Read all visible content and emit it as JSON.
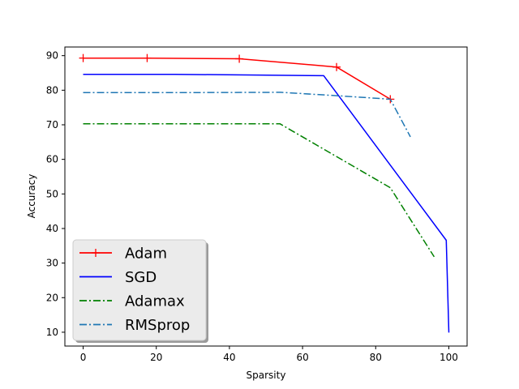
{
  "chart_data": {
    "type": "line",
    "title": "",
    "xlabel": "Sparsity",
    "ylabel": "Accuracy",
    "xlim": [
      -5,
      105
    ],
    "ylim": [
      6,
      92.5
    ],
    "xticks": [
      0,
      20,
      40,
      60,
      80,
      100
    ],
    "yticks": [
      10,
      20,
      30,
      40,
      50,
      60,
      70,
      80,
      90
    ],
    "grid": false,
    "legend_position": "lower-left",
    "series": [
      {
        "name": "Adam",
        "color": "#ff0000",
        "linestyle": "solid",
        "marker": "plus",
        "x": [
          0,
          17.5,
          42.7,
          69.3,
          84.0
        ],
        "y": [
          89.3,
          89.3,
          89.1,
          86.7,
          77.4
        ]
      },
      {
        "name": "SGD",
        "color": "#0000ff",
        "linestyle": "solid",
        "marker": "none",
        "x": [
          0,
          25,
          65.8,
          99.3,
          100
        ],
        "y": [
          84.6,
          84.6,
          84.2,
          36.6,
          9.9
        ]
      },
      {
        "name": "Adamax",
        "color": "#008000",
        "linestyle": "dashdot",
        "marker": "none",
        "x": [
          0,
          25,
          53.8,
          84.0,
          96.0
        ],
        "y": [
          70.3,
          70.3,
          70.3,
          51.8,
          31.8
        ]
      },
      {
        "name": "RMSprop",
        "color": "#1f77b4",
        "linestyle": "dashdot",
        "marker": "none",
        "x": [
          0,
          25,
          54.0,
          69.5,
          84.0,
          89.5
        ],
        "y": [
          79.3,
          79.3,
          79.4,
          78.4,
          77.4,
          66.5
        ]
      }
    ]
  }
}
